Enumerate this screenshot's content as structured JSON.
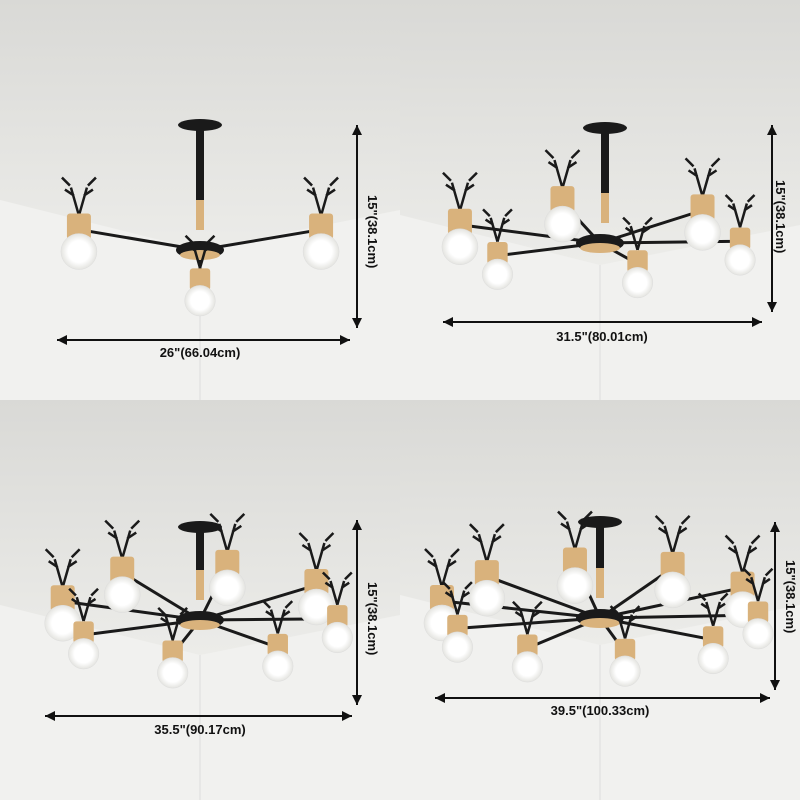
{
  "panels": [
    {
      "width_label": "26\"(66.04cm)",
      "height_label": "15\"(38.1cm)",
      "lights": 3
    },
    {
      "width_label": "31.5\"(80.01cm)",
      "height_label": "15\"(38.1cm)",
      "lights": 6
    },
    {
      "width_label": "35.5\"(90.17cm)",
      "height_label": "15\"(38.1cm)",
      "lights": 8
    },
    {
      "width_label": "39.5\"(100.33cm)",
      "height_label": "15\"(38.1cm)",
      "lights": 10
    }
  ],
  "colors": {
    "metal": "#1a1a1a",
    "wood": "#d9b27c",
    "bulb": "#ffffff",
    "ceiling": "#e6e6e3",
    "wall": "#f1f1ef"
  }
}
